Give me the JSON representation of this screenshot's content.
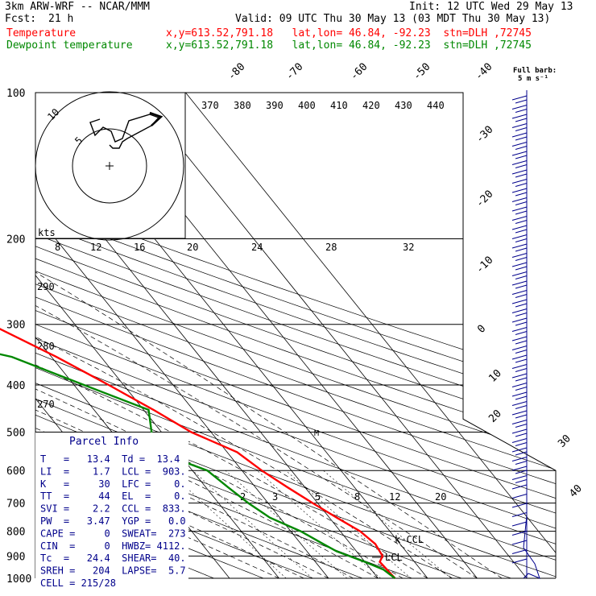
{
  "header": {
    "model": "3km ARW-WRF -- NCAR/MMM",
    "init": "Init: 12 UTC Wed 29 May 13",
    "fcst_label": "Fcst:",
    "fcst_value": "21 h",
    "valid": "Valid: 09 UTC Thu 30 May 13 (03 MDT Thu 30 May 13)"
  },
  "legend": [
    {
      "label": "Temperature",
      "location": "x,y=613.52,791.18   lat,lon= 46.84, -92.23  stn=DLH ,72745",
      "color": "#ff0000"
    },
    {
      "label": "Dewpoint temperature",
      "location": "x,y=613.52,791.18   lat,lon= 46.84, -92.23  stn=DLH ,72745",
      "color": "#008800"
    }
  ],
  "barb_legend": {
    "line1": "Full barb:",
    "line2": "5 m s⁻¹"
  },
  "parcel_info": {
    "title": "Parcel Info",
    "rows": [
      "T   =   13.4  Td =  13.4",
      "LI  =    1.7  LCL =  903.",
      "K   =     30  LFC =    0.",
      "TT  =     44  EL  =    0.",
      "SVI =    2.2  CCL =  833.",
      "PW  =   3.47  YGP =   0.0",
      "CAPE =     0  SWEAT=  273",
      "CIN  =     0  HWBZ= 4112.",
      "Tc  =   24.4  SHEAR=  40.",
      "SREH =   204  LAPSE=  5.7",
      "CELL = 215/28"
    ]
  },
  "hodograph": {
    "units": "kts",
    "ring_labels": [
      "5",
      "10"
    ],
    "speed_scale": [
      "8",
      "12",
      "16",
      "20",
      "24",
      "28",
      "32"
    ]
  },
  "annotations": {
    "ccl": "k-CCL",
    "lcl": "LCL",
    "marker": "M"
  },
  "chart_data": {
    "type": "line",
    "subtype": "skew-T log-p sounding",
    "y_axis": {
      "label": "pressure (hPa)",
      "ticks": [
        100,
        200,
        300,
        400,
        500,
        600,
        700,
        800,
        900,
        1000
      ],
      "scale": "log",
      "range": [
        1000,
        100
      ]
    },
    "temperature_ticks": [
      -80,
      -70,
      -60,
      -50,
      -40,
      -30,
      -20,
      -10,
      0,
      10,
      20,
      30,
      40
    ],
    "theta_labels": [
      "370",
      "380",
      "390",
      "400",
      "410",
      "420",
      "430",
      "440"
    ],
    "theta_left_labels": [
      "290",
      "280",
      "270"
    ],
    "mixing_ratio_labels": [
      "2",
      "3",
      "5",
      "8",
      "12",
      "20"
    ],
    "series": [
      {
        "name": "Temperature",
        "color": "#ff0000",
        "points": [
          [
            1000,
            13.4
          ],
          [
            925,
            13.0
          ],
          [
            900,
            14.5
          ],
          [
            850,
            15.0
          ],
          [
            800,
            14.0
          ],
          [
            750,
            11.5
          ],
          [
            700,
            9.0
          ],
          [
            650,
            6.5
          ],
          [
            600,
            4.0
          ],
          [
            550,
            2.0
          ],
          [
            500,
            -4.0
          ],
          [
            450,
            -8.0
          ],
          [
            400,
            -13.0
          ],
          [
            350,
            -19.0
          ],
          [
            300,
            -27.0
          ],
          [
            250,
            -37.0
          ],
          [
            200,
            -48.0
          ],
          [
            180,
            -54.0
          ],
          [
            160,
            -54.0
          ],
          [
            140,
            -50.0
          ],
          [
            120,
            -45.0
          ],
          [
            110,
            -47.0
          ],
          [
            100,
            -50.0
          ]
        ]
      },
      {
        "name": "Dewpoint temperature",
        "color": "#008800",
        "points": [
          [
            1000,
            13.4
          ],
          [
            960,
            12.5
          ],
          [
            925,
            10.0
          ],
          [
            880,
            6.0
          ],
          [
            850,
            4.5
          ],
          [
            800,
            2.0
          ],
          [
            750,
            -2.0
          ],
          [
            700,
            -4.0
          ],
          [
            650,
            -5.5
          ],
          [
            600,
            -7.0
          ],
          [
            550,
            -14.0
          ],
          [
            500,
            -12.0
          ],
          [
            450,
            -9.0
          ],
          [
            400,
            -18.0
          ],
          [
            350,
            -28.0
          ],
          [
            300,
            -52.0
          ],
          [
            250,
            -54.0
          ],
          [
            220,
            -56.0
          ],
          [
            200,
            -60.0
          ],
          [
            150,
            -64.0
          ],
          [
            120,
            -70.0
          ],
          [
            100,
            -66.0
          ]
        ]
      }
    ],
    "grid": true
  },
  "colors": {
    "temperature": "#ff0000",
    "dewpoint": "#008800",
    "barbs": "#00008b",
    "grid": "#000000"
  }
}
